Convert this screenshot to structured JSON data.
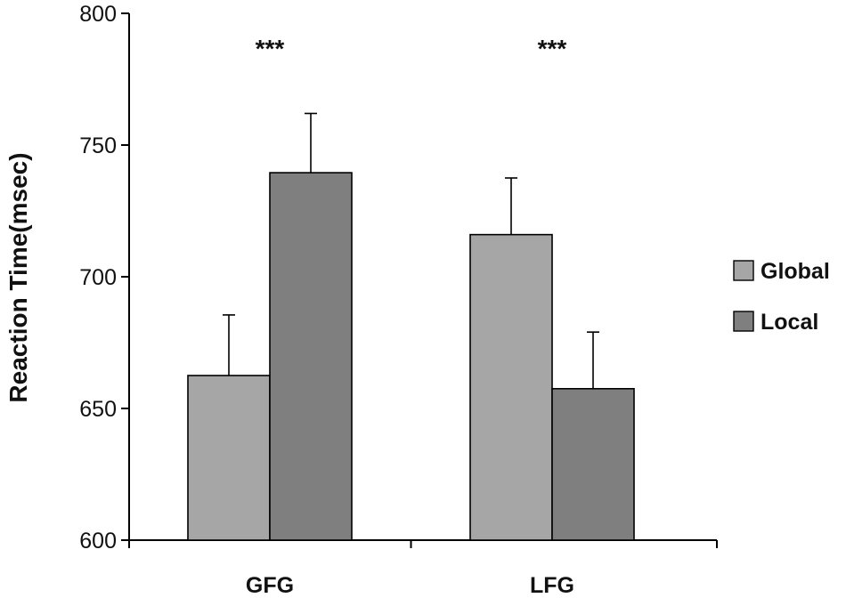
{
  "chart_data": {
    "type": "bar",
    "title": "",
    "xlabel": "",
    "ylabel": "Reaction Time(msec)",
    "ylim": [
      600,
      800
    ],
    "yticks": [
      600,
      650,
      700,
      750,
      800
    ],
    "categories": [
      "GFG",
      "LFG"
    ],
    "series": [
      {
        "name": "Global",
        "color": "#a6a6a6",
        "values": [
          662.5,
          716
        ],
        "errors": [
          23,
          21.5
        ]
      },
      {
        "name": "Local",
        "color": "#7f7f7f",
        "values": [
          739.5,
          657.5
        ],
        "errors": [
          22.5,
          21.5
        ]
      }
    ],
    "annotations": [
      "***",
      "***"
    ],
    "legend_position": "right",
    "grid": false,
    "error_bars": "upper"
  }
}
